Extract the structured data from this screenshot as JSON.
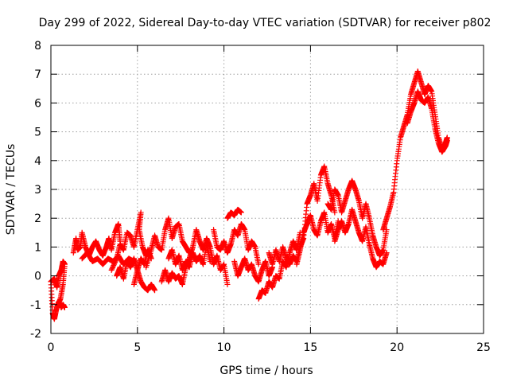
{
  "chart_data": {
    "type": "scatter",
    "title": "Day 299 of 2022, Sidereal Day-to-day VTEC variation (SDTVAR) for receiver p802",
    "xlabel": "GPS time / hours",
    "ylabel": "SDTVAR / TECUs",
    "xlim": [
      0,
      25
    ],
    "ylim": [
      -2,
      8
    ],
    "xticks": [
      0,
      5,
      10,
      15,
      20,
      25
    ],
    "yticks": [
      -2,
      -1,
      0,
      1,
      2,
      3,
      4,
      5,
      6,
      7,
      8
    ],
    "grid": true,
    "marker": "+",
    "series": [
      {
        "name": "SDTVAR",
        "color": "#ff0000",
        "segments": [
          [
            [
              0.0,
              -0.2
            ],
            [
              0.1,
              -1.3
            ],
            [
              0.2,
              -1.5
            ],
            [
              0.3,
              -1.2
            ],
            [
              0.45,
              -0.9
            ],
            [
              0.6,
              -1.1
            ],
            [
              0.7,
              -1.0
            ],
            [
              0.8,
              -1.1
            ]
          ],
          [
            [
              0.0,
              -0.2
            ],
            [
              0.2,
              -0.1
            ],
            [
              0.35,
              -0.4
            ],
            [
              0.45,
              0.0
            ],
            [
              0.6,
              0.2
            ],
            [
              0.7,
              0.5
            ],
            [
              0.8,
              0.4
            ],
            [
              0.7,
              -0.3
            ],
            [
              0.55,
              -0.8
            ],
            [
              0.4,
              -1.0
            ]
          ],
          [
            [
              1.3,
              0.8
            ],
            [
              1.45,
              1.3
            ],
            [
              1.55,
              0.9
            ],
            [
              1.7,
              1.0
            ],
            [
              1.8,
              1.5
            ],
            [
              2.0,
              1.0
            ],
            [
              2.2,
              0.7
            ],
            [
              2.4,
              1.0
            ],
            [
              2.6,
              1.2
            ],
            [
              2.8,
              0.9
            ],
            [
              3.0,
              0.7
            ],
            [
              3.2,
              1.0
            ],
            [
              3.35,
              1.3
            ],
            [
              3.5,
              0.9
            ],
            [
              3.7,
              1.5
            ],
            [
              3.9,
              1.8
            ],
            [
              4.0,
              1.2
            ]
          ],
          [
            [
              1.8,
              0.6
            ],
            [
              2.1,
              0.8
            ],
            [
              2.4,
              0.5
            ],
            [
              2.7,
              0.6
            ],
            [
              3.0,
              0.4
            ],
            [
              3.3,
              0.6
            ],
            [
              3.6,
              0.5
            ],
            [
              3.9,
              0.7
            ],
            [
              4.2,
              0.4
            ],
            [
              4.5,
              0.6
            ],
            [
              4.8,
              0.5
            ]
          ],
          [
            [
              3.5,
              0.2
            ],
            [
              3.8,
              0.6
            ],
            [
              4.0,
              1.1
            ],
            [
              4.2,
              0.9
            ],
            [
              4.4,
              1.5
            ],
            [
              4.6,
              1.4
            ],
            [
              4.8,
              1.0
            ],
            [
              5.0,
              1.6
            ],
            [
              5.2,
              2.2
            ],
            [
              5.1,
              1.6
            ],
            [
              5.3,
              1.0
            ],
            [
              5.5,
              0.7
            ],
            [
              5.7,
              0.9
            ]
          ],
          [
            [
              3.8,
              0.0
            ],
            [
              4.0,
              0.3
            ],
            [
              4.2,
              -0.1
            ],
            [
              4.4,
              0.5
            ],
            [
              4.6,
              0.3
            ],
            [
              4.8,
              0.6
            ],
            [
              5.0,
              0.2
            ],
            [
              5.2,
              0.6
            ],
            [
              5.4,
              0.4
            ],
            [
              5.6,
              0.9
            ],
            [
              5.8,
              0.6
            ]
          ],
          [
            [
              4.8,
              -0.3
            ],
            [
              5.0,
              0.2
            ],
            [
              5.2,
              -0.2
            ],
            [
              5.4,
              -0.4
            ],
            [
              5.6,
              -0.5
            ],
            [
              5.8,
              -0.3
            ],
            [
              6.0,
              -0.5
            ]
          ],
          [
            [
              5.5,
              0.3
            ],
            [
              5.8,
              0.9
            ],
            [
              6.0,
              1.4
            ],
            [
              6.2,
              1.0
            ],
            [
              6.4,
              0.9
            ],
            [
              6.6,
              1.6
            ],
            [
              6.8,
              2.0
            ],
            [
              7.0,
              1.3
            ],
            [
              7.2,
              1.7
            ],
            [
              7.4,
              1.8
            ],
            [
              7.6,
              1.2
            ],
            [
              7.8,
              1.0
            ],
            [
              8.0,
              0.8
            ]
          ],
          [
            [
              6.4,
              -0.2
            ],
            [
              6.6,
              0.2
            ],
            [
              6.8,
              -0.2
            ],
            [
              7.0,
              0.1
            ],
            [
              7.2,
              -0.1
            ],
            [
              7.4,
              0.0
            ],
            [
              7.6,
              -0.3
            ],
            [
              7.8,
              0.3
            ],
            [
              8.0,
              0.5
            ]
          ],
          [
            [
              6.8,
              0.6
            ],
            [
              7.0,
              0.9
            ],
            [
              7.2,
              0.4
            ],
            [
              7.4,
              0.7
            ],
            [
              7.6,
              0.2
            ],
            [
              7.8,
              0.5
            ],
            [
              8.0,
              0.3
            ],
            [
              8.2,
              0.8
            ],
            [
              8.4,
              0.5
            ],
            [
              8.6,
              0.7
            ],
            [
              8.8,
              0.4
            ],
            [
              9.0,
              1.1
            ],
            [
              9.2,
              0.5
            ]
          ],
          [
            [
              7.8,
              0.3
            ],
            [
              8.0,
              0.6
            ],
            [
              8.2,
              1.0
            ],
            [
              8.4,
              1.6
            ],
            [
              8.6,
              1.2
            ],
            [
              8.8,
              0.9
            ],
            [
              9.0,
              1.3
            ],
            [
              9.2,
              1.0
            ],
            [
              9.4,
              0.4
            ],
            [
              9.6,
              0.7
            ],
            [
              9.8,
              0.2
            ],
            [
              10.0,
              0.4
            ],
            [
              10.2,
              -0.3
            ]
          ],
          [
            [
              9.4,
              1.6
            ],
            [
              9.6,
              1.0
            ],
            [
              9.8,
              0.9
            ],
            [
              10.0,
              1.2
            ],
            [
              10.2,
              0.8
            ],
            [
              10.4,
              1.1
            ],
            [
              10.6,
              1.6
            ],
            [
              10.8,
              1.4
            ],
            [
              11.0,
              1.8
            ],
            [
              11.2,
              1.6
            ],
            [
              11.4,
              0.9
            ],
            [
              11.6,
              1.2
            ],
            [
              11.8,
              1.0
            ],
            [
              12.0,
              0.4
            ]
          ],
          [
            [
              10.2,
              2.0
            ],
            [
              10.4,
              2.2
            ],
            [
              10.6,
              2.1
            ],
            [
              10.8,
              2.3
            ],
            [
              11.0,
              2.2
            ]
          ],
          [
            [
              10.6,
              0.5
            ],
            [
              10.8,
              0.0
            ],
            [
              11.0,
              0.3
            ],
            [
              11.2,
              0.6
            ],
            [
              11.4,
              0.2
            ],
            [
              11.6,
              0.4
            ],
            [
              11.8,
              0.0
            ],
            [
              12.0,
              -0.2
            ],
            [
              12.2,
              0.2
            ],
            [
              12.4,
              0.5
            ],
            [
              12.6,
              0.0
            ],
            [
              12.8,
              0.3
            ]
          ],
          [
            [
              12.0,
              -0.8
            ],
            [
              12.2,
              -0.5
            ],
            [
              12.4,
              -0.6
            ],
            [
              12.6,
              -0.2
            ],
            [
              12.8,
              -0.4
            ],
            [
              13.0,
              0.0
            ],
            [
              13.2,
              -0.1
            ],
            [
              13.4,
              0.5
            ],
            [
              13.6,
              0.3
            ],
            [
              13.8,
              0.8
            ],
            [
              14.0,
              1.2
            ],
            [
              14.2,
              0.9
            ],
            [
              14.4,
              1.5
            ]
          ],
          [
            [
              12.6,
              0.8
            ],
            [
              12.8,
              0.4
            ],
            [
              13.0,
              0.9
            ],
            [
              13.2,
              0.5
            ],
            [
              13.4,
              1.0
            ],
            [
              13.6,
              0.6
            ],
            [
              13.8,
              0.4
            ],
            [
              14.0,
              0.7
            ],
            [
              14.2,
              0.5
            ],
            [
              14.4,
              1.0
            ],
            [
              14.6,
              1.3
            ],
            [
              14.8,
              2.5
            ],
            [
              15.0,
              2.8
            ],
            [
              15.2,
              3.2
            ],
            [
              15.4,
              2.6
            ],
            [
              15.6,
              3.5
            ],
            [
              15.8,
              3.8
            ],
            [
              16.0,
              3.2
            ],
            [
              16.2,
              2.8
            ],
            [
              16.4,
              2.2
            ]
          ],
          [
            [
              14.2,
              0.4
            ],
            [
              14.4,
              0.9
            ],
            [
              14.6,
              1.5
            ],
            [
              14.8,
              1.8
            ],
            [
              15.0,
              2.1
            ],
            [
              15.2,
              1.6
            ],
            [
              15.4,
              1.4
            ],
            [
              15.6,
              1.9
            ],
            [
              15.8,
              2.2
            ],
            [
              16.0,
              1.5
            ],
            [
              16.2,
              1.8
            ],
            [
              16.4,
              1.3
            ],
            [
              16.6,
              1.9
            ]
          ],
          [
            [
              16.0,
              2.5
            ],
            [
              16.2,
              2.3
            ],
            [
              16.4,
              3.0
            ],
            [
              16.6,
              2.8
            ],
            [
              16.8,
              2.2
            ],
            [
              17.0,
              2.6
            ],
            [
              17.2,
              3.0
            ],
            [
              17.4,
              3.3
            ],
            [
              17.6,
              3.0
            ],
            [
              17.8,
              2.6
            ],
            [
              18.0,
              2.0
            ],
            [
              18.2,
              2.5
            ],
            [
              18.4,
              2.0
            ],
            [
              18.6,
              1.4
            ],
            [
              18.8,
              1.0
            ],
            [
              19.0,
              0.7
            ],
            [
              19.2,
              0.9
            ],
            [
              19.4,
              1.6
            ]
          ],
          [
            [
              16.4,
              1.2
            ],
            [
              16.6,
              1.6
            ],
            [
              16.8,
              1.9
            ],
            [
              17.0,
              1.5
            ],
            [
              17.2,
              1.8
            ],
            [
              17.4,
              2.3
            ],
            [
              17.6,
              1.9
            ],
            [
              17.8,
              1.5
            ],
            [
              18.0,
              1.2
            ],
            [
              18.2,
              1.7
            ],
            [
              18.4,
              1.1
            ],
            [
              18.6,
              0.6
            ],
            [
              18.8,
              0.3
            ],
            [
              19.0,
              0.5
            ],
            [
              19.2,
              0.4
            ],
            [
              19.4,
              0.8
            ]
          ],
          [
            [
              19.2,
              1.6
            ],
            [
              19.4,
              2.0
            ],
            [
              19.6,
              2.4
            ],
            [
              19.8,
              2.9
            ],
            [
              20.0,
              4.0
            ],
            [
              20.2,
              4.8
            ],
            [
              20.4,
              5.2
            ],
            [
              20.6,
              5.6
            ],
            [
              20.8,
              6.3
            ],
            [
              21.0,
              6.7
            ],
            [
              21.2,
              7.1
            ],
            [
              21.4,
              6.7
            ],
            [
              21.6,
              6.3
            ],
            [
              21.8,
              6.6
            ],
            [
              22.0,
              6.4
            ],
            [
              22.2,
              5.6
            ],
            [
              22.4,
              4.8
            ],
            [
              22.6,
              4.4
            ],
            [
              22.8,
              4.6
            ],
            [
              22.9,
              4.8
            ]
          ],
          [
            [
              20.6,
              5.3
            ],
            [
              20.8,
              5.7
            ],
            [
              21.0,
              6.0
            ],
            [
              21.2,
              6.4
            ],
            [
              21.4,
              6.1
            ],
            [
              21.6,
              6.0
            ],
            [
              21.8,
              6.2
            ],
            [
              22.0,
              5.8
            ],
            [
              22.2,
              5.1
            ],
            [
              22.4,
              4.6
            ],
            [
              22.6,
              4.3
            ],
            [
              22.8,
              4.5
            ],
            [
              22.9,
              4.7
            ]
          ]
        ]
      }
    ]
  }
}
